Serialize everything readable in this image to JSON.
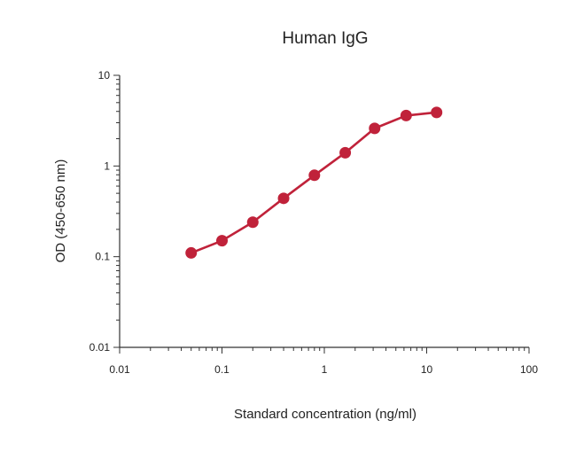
{
  "chart_data": {
    "type": "line",
    "title": "Human IgG",
    "xlabel": "Standard concentration (ng/ml)",
    "ylabel": "OD (450-650 nm)",
    "x_scale": "log",
    "y_scale": "log",
    "xlim": [
      0.01,
      100
    ],
    "ylim": [
      0.01,
      10
    ],
    "x_ticks": [
      "0.01",
      "0.1",
      "1",
      "10",
      "100"
    ],
    "y_ticks": [
      "0.01",
      "0.1",
      "1",
      "10"
    ],
    "grid": false,
    "series": [
      {
        "color": "#c0223a",
        "x": [
          0.05,
          0.1,
          0.2,
          0.4,
          0.8,
          1.6,
          3.1,
          6.3,
          12.5
        ],
        "y": [
          0.11,
          0.15,
          0.24,
          0.44,
          0.79,
          1.4,
          2.6,
          3.6,
          3.9
        ]
      }
    ]
  }
}
